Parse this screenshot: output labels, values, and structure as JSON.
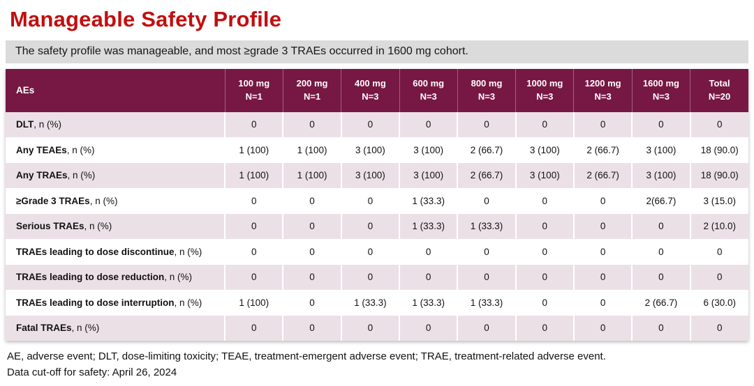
{
  "title": "Manageable Safety Profile",
  "subtitle": "The safety profile was manageable, and most ≥grade 3 TRAEs occurred in 1600 mg cohort.",
  "colors": {
    "title_red": "#c20e0e",
    "subtitle_bg": "#dbdbdb",
    "table_header_bg": "#761843",
    "row_alt_pink": "#ece0e7",
    "row_white": "#ffffff"
  },
  "table": {
    "header": {
      "label": "AEs",
      "columns": [
        {
          "dose": "100 mg",
          "n": "N=1"
        },
        {
          "dose": "200 mg",
          "n": "N=1"
        },
        {
          "dose": "400 mg",
          "n": "N=3"
        },
        {
          "dose": "600 mg",
          "n": "N=3"
        },
        {
          "dose": "800 mg",
          "n": "N=3"
        },
        {
          "dose": "1000 mg",
          "n": "N=3"
        },
        {
          "dose": "1200 mg",
          "n": "N=3"
        },
        {
          "dose": "1600 mg",
          "n": "N=3"
        },
        {
          "dose": "Total",
          "n": "N=20"
        }
      ]
    },
    "rows": [
      {
        "label_bold": "DLT",
        "label_rest": ", n (%)",
        "values": [
          "0",
          "0",
          "0",
          "0",
          "0",
          "0",
          "0",
          "0",
          "0"
        ]
      },
      {
        "label_bold": "Any TEAEs",
        "label_rest": ", n (%)",
        "values": [
          "1 (100)",
          "1 (100)",
          "3 (100)",
          "3 (100)",
          "2 (66.7)",
          "3 (100)",
          "2 (66.7)",
          "3 (100)",
          "18 (90.0)"
        ]
      },
      {
        "label_bold": "Any TRAEs",
        "label_rest": ", n (%)",
        "values": [
          "1 (100)",
          "1 (100)",
          "3 (100)",
          "3 (100)",
          "2 (66.7)",
          "3 (100)",
          "2 (66.7)",
          "3 (100)",
          "18 (90.0)"
        ]
      },
      {
        "label_bold": "≥Grade 3 TRAEs",
        "label_rest": ", n (%)",
        "values": [
          "0",
          "0",
          "0",
          "1 (33.3)",
          "0",
          "0",
          "0",
          "2(66.7)",
          "3 (15.0)"
        ]
      },
      {
        "label_bold": "Serious TRAEs",
        "label_rest": ", n (%)",
        "values": [
          "0",
          "0",
          "0",
          "1 (33.3)",
          "1 (33.3)",
          "0",
          "0",
          "0",
          "2 (10.0)"
        ]
      },
      {
        "label_bold": "TRAEs leading to dose discontinue",
        "label_rest": ", n (%)",
        "values": [
          "0",
          "0",
          "0",
          "0",
          "0",
          "0",
          "0",
          "0",
          "0"
        ]
      },
      {
        "label_bold": "TRAEs leading to dose reduction",
        "label_rest": ", n (%)",
        "values": [
          "0",
          "0",
          "0",
          "0",
          "0",
          "0",
          "0",
          "0",
          "0"
        ]
      },
      {
        "label_bold": "TRAEs leading to dose interruption",
        "label_rest": ", n (%)",
        "values": [
          "1 (100)",
          "0",
          "1 (33.3)",
          "1 (33.3)",
          "1 (33.3)",
          "0",
          "0",
          "2 (66.7)",
          "6 (30.0)"
        ]
      },
      {
        "label_bold": "Fatal TRAEs",
        "label_rest": ", n (%)",
        "values": [
          "0",
          "0",
          "0",
          "0",
          "0",
          "0",
          "0",
          "0",
          "0"
        ]
      }
    ]
  },
  "footer": {
    "abbreviations": "AE, adverse event; DLT, dose-limiting toxicity; TEAE, treatment-emergent adverse event; TRAE, treatment-related adverse event.",
    "data_cutoff": "Data cut-off for safety: April 26, 2024"
  }
}
